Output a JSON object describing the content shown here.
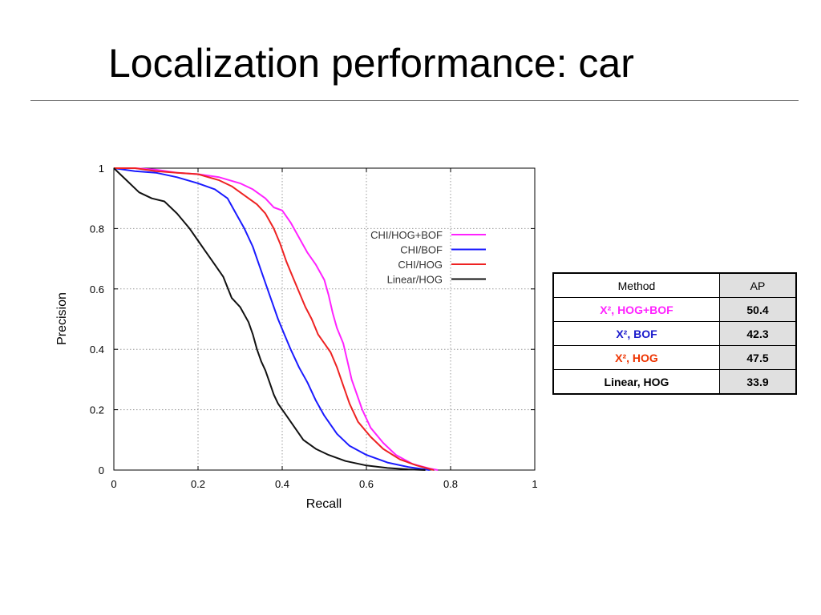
{
  "slide": {
    "title": "Localization performance: car"
  },
  "chart_data": {
    "type": "line",
    "title": "",
    "xlabel": "Recall",
    "ylabel": "Precision",
    "xlim": [
      0,
      1
    ],
    "ylim": [
      0,
      1
    ],
    "grid": true,
    "legend_position": "right-center",
    "x_ticks": [
      0,
      0.2,
      0.4,
      0.6,
      0.8,
      1
    ],
    "y_ticks": [
      0,
      0.2,
      0.4,
      0.6,
      0.8,
      1
    ],
    "x_tick_labels": [
      "0",
      "0.2",
      "0.4",
      "0.6",
      "0.8",
      "1"
    ],
    "y_tick_labels": [
      "0",
      "0.2",
      "0.4",
      "0.6",
      "0.8",
      "1"
    ],
    "series": [
      {
        "name": "CHI/HOG+BOF",
        "color": "#ff22ff",
        "points": [
          [
            0,
            1
          ],
          [
            0.05,
            1
          ],
          [
            0.1,
            0.995
          ],
          [
            0.15,
            0.985
          ],
          [
            0.2,
            0.98
          ],
          [
            0.25,
            0.97
          ],
          [
            0.3,
            0.95
          ],
          [
            0.33,
            0.93
          ],
          [
            0.36,
            0.9
          ],
          [
            0.38,
            0.87
          ],
          [
            0.4,
            0.86
          ],
          [
            0.42,
            0.82
          ],
          [
            0.44,
            0.77
          ],
          [
            0.46,
            0.72
          ],
          [
            0.48,
            0.68
          ],
          [
            0.5,
            0.63
          ],
          [
            0.51,
            0.58
          ],
          [
            0.52,
            0.52
          ],
          [
            0.53,
            0.47
          ],
          [
            0.545,
            0.42
          ],
          [
            0.555,
            0.36
          ],
          [
            0.565,
            0.3
          ],
          [
            0.575,
            0.26
          ],
          [
            0.59,
            0.2
          ],
          [
            0.61,
            0.14
          ],
          [
            0.64,
            0.09
          ],
          [
            0.67,
            0.05
          ],
          [
            0.71,
            0.02
          ],
          [
            0.75,
            0.005
          ],
          [
            0.77,
            0
          ]
        ]
      },
      {
        "name": "CHI/BOF",
        "color": "#1a1aff",
        "points": [
          [
            0,
            1
          ],
          [
            0.05,
            0.99
          ],
          [
            0.1,
            0.985
          ],
          [
            0.15,
            0.97
          ],
          [
            0.2,
            0.95
          ],
          [
            0.24,
            0.93
          ],
          [
            0.27,
            0.9
          ],
          [
            0.29,
            0.85
          ],
          [
            0.31,
            0.8
          ],
          [
            0.33,
            0.74
          ],
          [
            0.345,
            0.68
          ],
          [
            0.36,
            0.62
          ],
          [
            0.375,
            0.56
          ],
          [
            0.39,
            0.5
          ],
          [
            0.405,
            0.45
          ],
          [
            0.42,
            0.4
          ],
          [
            0.44,
            0.34
          ],
          [
            0.46,
            0.29
          ],
          [
            0.48,
            0.23
          ],
          [
            0.5,
            0.18
          ],
          [
            0.53,
            0.12
          ],
          [
            0.56,
            0.08
          ],
          [
            0.6,
            0.05
          ],
          [
            0.65,
            0.025
          ],
          [
            0.7,
            0.01
          ],
          [
            0.75,
            0
          ]
        ]
      },
      {
        "name": "CHI/HOG",
        "color": "#ee2222",
        "points": [
          [
            0,
            1
          ],
          [
            0.05,
            1
          ],
          [
            0.1,
            0.99
          ],
          [
            0.15,
            0.985
          ],
          [
            0.2,
            0.98
          ],
          [
            0.25,
            0.96
          ],
          [
            0.28,
            0.94
          ],
          [
            0.31,
            0.91
          ],
          [
            0.34,
            0.88
          ],
          [
            0.36,
            0.85
          ],
          [
            0.38,
            0.8
          ],
          [
            0.395,
            0.75
          ],
          [
            0.41,
            0.69
          ],
          [
            0.425,
            0.64
          ],
          [
            0.44,
            0.59
          ],
          [
            0.455,
            0.54
          ],
          [
            0.47,
            0.5
          ],
          [
            0.485,
            0.45
          ],
          [
            0.5,
            0.42
          ],
          [
            0.515,
            0.39
          ],
          [
            0.53,
            0.34
          ],
          [
            0.545,
            0.28
          ],
          [
            0.56,
            0.22
          ],
          [
            0.58,
            0.16
          ],
          [
            0.61,
            0.11
          ],
          [
            0.64,
            0.07
          ],
          [
            0.68,
            0.035
          ],
          [
            0.72,
            0.015
          ],
          [
            0.76,
            0
          ]
        ]
      },
      {
        "name": "Linear/HOG",
        "color": "#111111",
        "points": [
          [
            0,
            1
          ],
          [
            0.03,
            0.96
          ],
          [
            0.06,
            0.92
          ],
          [
            0.09,
            0.9
          ],
          [
            0.12,
            0.89
          ],
          [
            0.15,
            0.85
          ],
          [
            0.18,
            0.8
          ],
          [
            0.2,
            0.76
          ],
          [
            0.22,
            0.72
          ],
          [
            0.24,
            0.68
          ],
          [
            0.26,
            0.64
          ],
          [
            0.28,
            0.57
          ],
          [
            0.3,
            0.54
          ],
          [
            0.32,
            0.49
          ],
          [
            0.33,
            0.45
          ],
          [
            0.34,
            0.4
          ],
          [
            0.35,
            0.36
          ],
          [
            0.36,
            0.33
          ],
          [
            0.37,
            0.29
          ],
          [
            0.38,
            0.25
          ],
          [
            0.39,
            0.22
          ],
          [
            0.41,
            0.18
          ],
          [
            0.43,
            0.14
          ],
          [
            0.45,
            0.1
          ],
          [
            0.48,
            0.07
          ],
          [
            0.51,
            0.05
          ],
          [
            0.55,
            0.03
          ],
          [
            0.6,
            0.015
          ],
          [
            0.65,
            0.007
          ],
          [
            0.7,
            0.002
          ],
          [
            0.74,
            0
          ]
        ]
      }
    ]
  },
  "table": {
    "header": {
      "method": "Method",
      "ap": "AP"
    },
    "rows": [
      {
        "method": "Χ², HOG+BOF",
        "ap": "50.4",
        "color": "#ff22ff"
      },
      {
        "method": "Χ², BOF",
        "ap": "42.3",
        "color": "#1a1acc"
      },
      {
        "method": "Χ², HOG",
        "ap": "47.5",
        "color": "#ee3300"
      },
      {
        "method": "Linear, HOG",
        "ap": "33.9",
        "color": "#000000"
      }
    ]
  }
}
